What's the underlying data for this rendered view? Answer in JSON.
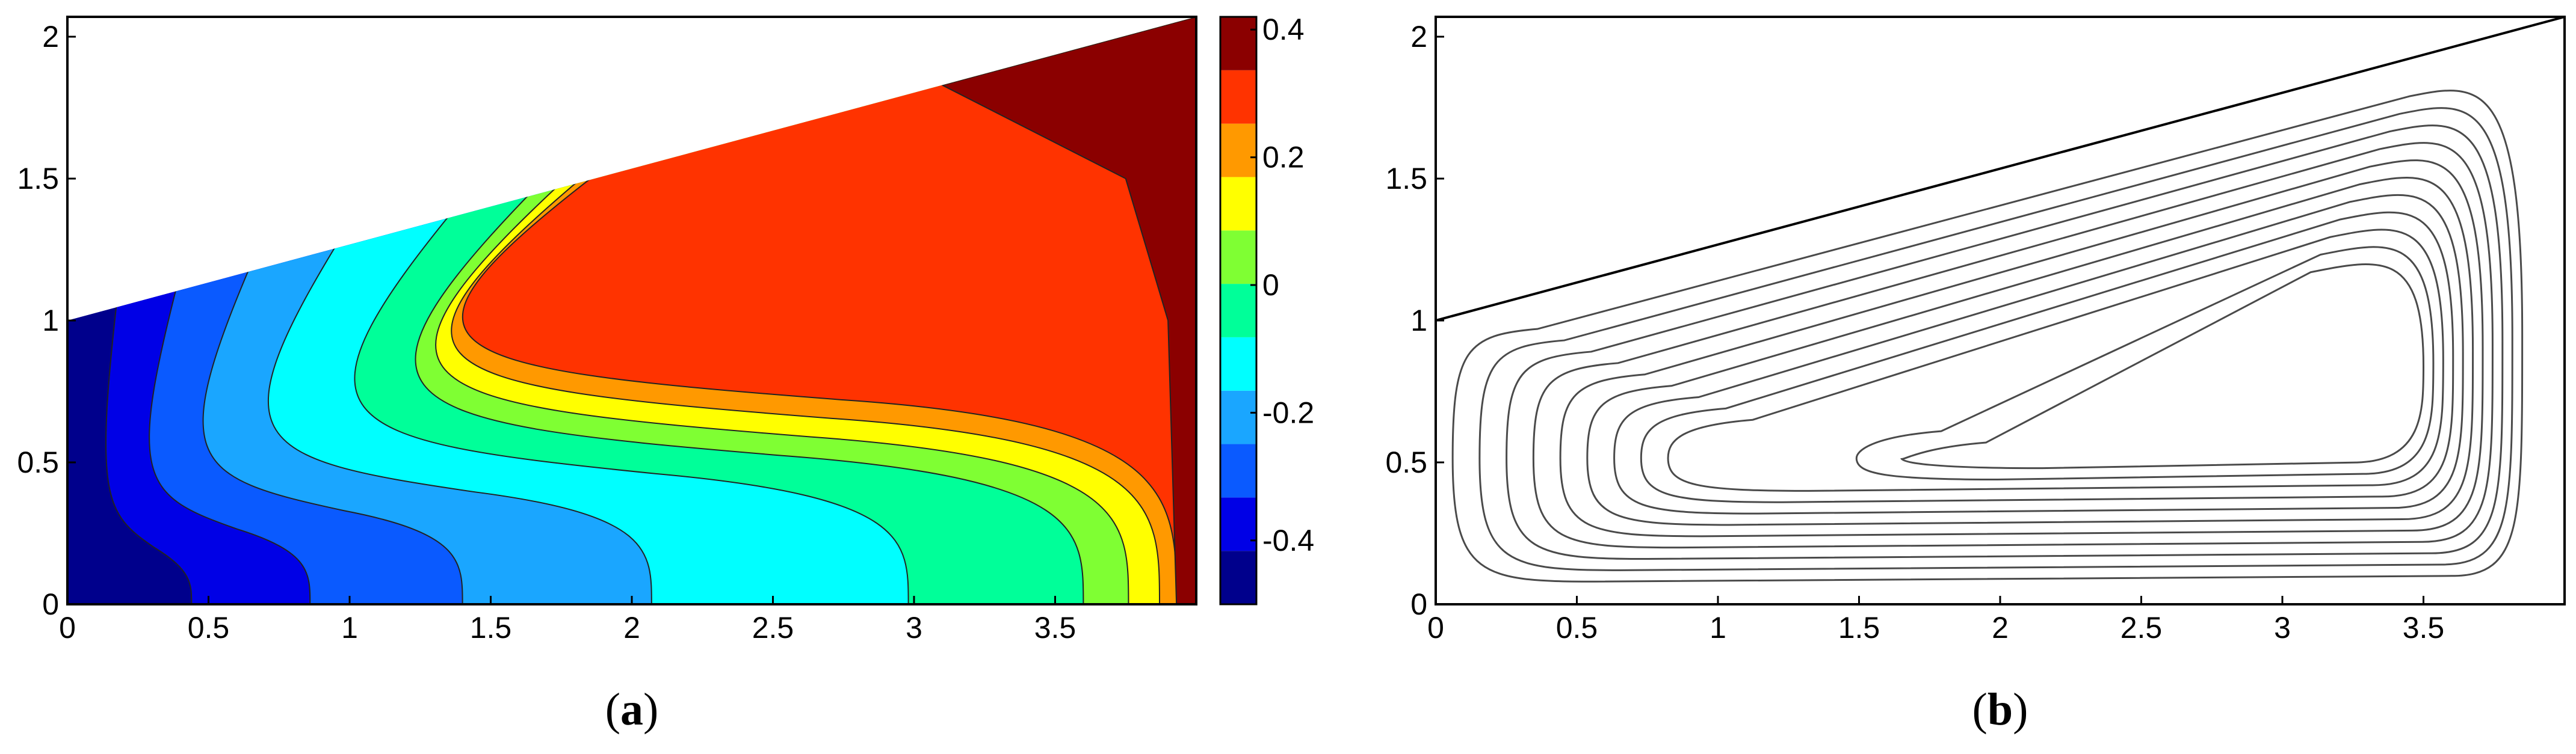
{
  "chart_data": [
    {
      "type": "contourf",
      "panel": "a",
      "caption_open": "(",
      "caption_letter": "a",
      "caption_close": ")",
      "xlim": [
        0,
        4
      ],
      "ylim": [
        0,
        2.07
      ],
      "x_ticks": [
        0,
        0.5,
        1,
        1.5,
        2,
        2.5,
        3,
        3.5
      ],
      "x_tick_labels": [
        "0",
        "0.5",
        "1",
        "1.5",
        "2",
        "2.5",
        "3",
        "3.5"
      ],
      "y_ticks": [
        0,
        0.5,
        1,
        1.5,
        2
      ],
      "y_tick_labels": [
        "0",
        "0.5",
        "1",
        "1.5",
        "2"
      ],
      "domain": "trapezoid: (0,0) (4,0) (4,2.07) (0,1)",
      "colorbar": {
        "range": [
          -0.5,
          0.42
        ],
        "ticks": [
          0.4,
          0.2,
          0,
          -0.2,
          -0.4
        ],
        "tick_labels": [
          "0.4",
          "0.2",
          "0",
          "-0.2",
          "-0.4"
        ],
        "colormap": "jet"
      },
      "regions": [
        {
          "level": -0.45,
          "color": "#00008c",
          "shape": "near-wall",
          "x_bottom": 0.18
        },
        {
          "level": -0.35,
          "color": "#0000e6",
          "shape": "near-wall",
          "x_bottom": 0.44
        },
        {
          "level": -0.25,
          "color": "#0a5aff",
          "shape": "near-wall",
          "x_bottom": 0.86
        },
        {
          "level": -0.15,
          "color": "#1aa6ff",
          "shape": "near-wall",
          "x_bottom": 1.4
        },
        {
          "level": -0.05,
          "color": "#00ffff",
          "shape": "near-wall",
          "x_bottom": 2.07
        },
        {
          "level": 0.05,
          "color": "#00ff99",
          "shape": "near-wall",
          "x_bottom": 2.98
        },
        {
          "level": 0.1,
          "color": "#7fff33",
          "shape": "near-wall",
          "x_bottom": 3.6
        },
        {
          "level": 0.15,
          "color": "#ffff00",
          "shape": "near-wall",
          "x_bottom": 3.76
        },
        {
          "level": 0.22,
          "color": "#ff9900",
          "shape": "near-wall",
          "x_bottom": 3.87
        },
        {
          "level": 0.3,
          "color": "#ff3300",
          "shape": "near-wall",
          "x_bottom": 3.93
        },
        {
          "level": 0.38,
          "color": "#8b0000",
          "shape": "corner",
          "x_bottom": 4.0
        }
      ]
    },
    {
      "type": "contour",
      "panel": "b",
      "caption_open": "(",
      "caption_letter": "b",
      "caption_close": ")",
      "xlim": [
        0,
        4
      ],
      "ylim": [
        0,
        2.07
      ],
      "x_ticks": [
        0,
        0.5,
        1,
        1.5,
        2,
        2.5,
        3,
        3.5
      ],
      "x_tick_labels": [
        "0",
        "0.5",
        "1",
        "1.5",
        "2",
        "2.5",
        "3",
        "3.5"
      ],
      "y_ticks": [
        0,
        0.5,
        1,
        1.5,
        2
      ],
      "y_tick_labels": [
        "0",
        "0.5",
        "1",
        "1.5",
        "2"
      ],
      "domain": "trapezoid: (0,0) (4,0) (4,2.07) (0,1)",
      "line_color": "#4a4a4a",
      "streamlines": {
        "count": 11,
        "outer_x": [
          0.06,
          3.85
        ],
        "outer_y_bottom": 0.08,
        "inner_core": {
          "x": [
            1.65,
            3.5
          ],
          "y": [
            0.55,
            1.2
          ]
        }
      }
    }
  ]
}
